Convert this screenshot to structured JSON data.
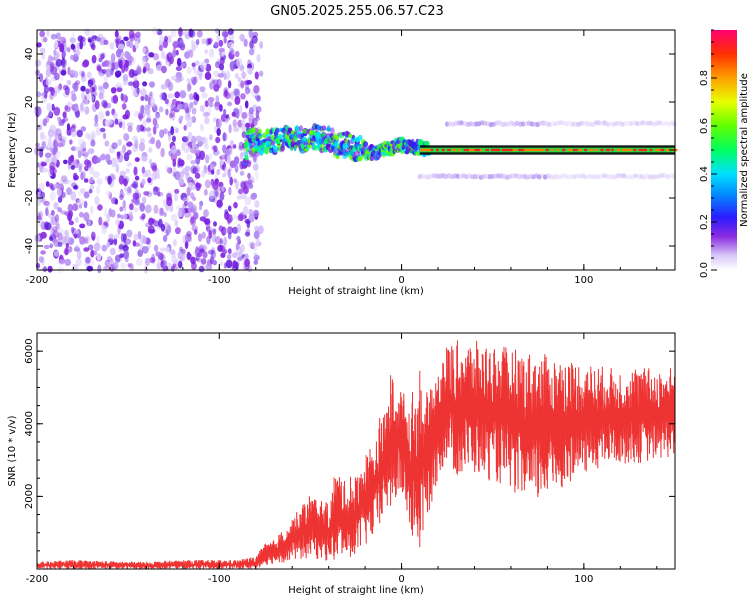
{
  "title": "GN05.2025.255.06.57.C23",
  "chart_data": [
    {
      "type": "heatmap",
      "xlabel": "Height of straight line (km)",
      "ylabel": "Frequency (Hz)",
      "xlim": [
        -200,
        150
      ],
      "ylim": [
        -50,
        50
      ],
      "x_ticks": [
        "-200",
        "-100",
        "0",
        "100"
      ],
      "y_ticks": [
        "-40",
        "-20",
        "0",
        "20",
        "40"
      ],
      "grid": false,
      "colorbar": {
        "label": "Normalized spectral amplitude",
        "range": [
          0.0,
          1.0
        ],
        "ticks": [
          "0.0",
          "0.2",
          "0.4",
          "0.6",
          "0.8"
        ]
      },
      "traces": [
        {
          "role": "main-tone",
          "x": [
            -85,
            -78,
            -70,
            -62,
            -55,
            -50,
            -45,
            -40,
            -35,
            -30,
            -25,
            -20,
            -15,
            -10,
            -5,
            0,
            5,
            10,
            15,
            20,
            40,
            60,
            80,
            100,
            120,
            150
          ],
          "y": [
            4,
            3,
            4,
            5,
            4,
            6,
            5,
            4,
            2,
            2,
            1,
            -1,
            -1,
            0,
            1,
            2,
            1,
            1,
            0,
            0,
            0,
            0,
            0,
            0,
            0,
            0
          ]
        },
        {
          "role": "upper-sideband",
          "x": [
            25,
            150
          ],
          "y": [
            11,
            11
          ]
        },
        {
          "role": "lower-sideband",
          "x": [
            10,
            150
          ],
          "y": [
            -11,
            -11
          ]
        }
      ],
      "noise_region_x": [
        -200,
        -80
      ]
    },
    {
      "type": "line",
      "xlabel": "Height of straight line (km)",
      "ylabel": "SNR (10 * v/v)",
      "xlim": [
        -200,
        150
      ],
      "ylim": [
        0,
        6500
      ],
      "x_ticks": [
        "-200",
        "-100",
        "0",
        "100"
      ],
      "y_ticks": [
        "2000",
        "4000",
        "6000"
      ],
      "grid": false,
      "series": [
        {
          "color": "#ee3333",
          "x": [
            -200,
            -180,
            -160,
            -140,
            -120,
            -100,
            -90,
            -80,
            -75,
            -70,
            -60,
            -50,
            -40,
            -35,
            -30,
            -25,
            -20,
            -15,
            -10,
            -5,
            0,
            5,
            10,
            15,
            20,
            25,
            30,
            40,
            50,
            60,
            70,
            80,
            90,
            100,
            110,
            120,
            130,
            140,
            150
          ],
          "min": [
            0,
            0,
            0,
            0,
            0,
            0,
            0,
            0,
            100,
            150,
            200,
            300,
            200,
            300,
            300,
            400,
            600,
            900,
            1500,
            1800,
            2000,
            1000,
            600,
            1500,
            2500,
            3000,
            2500,
            2600,
            2400,
            2200,
            1600,
            2000,
            2300,
            2600,
            2800,
            2900,
            2900,
            3000,
            3100
          ],
          "max": [
            200,
            250,
            220,
            200,
            250,
            250,
            250,
            350,
            700,
            800,
            1400,
            2100,
            1800,
            2800,
            2300,
            2600,
            3200,
            3600,
            4200,
            5300,
            5000,
            4500,
            5200,
            4800,
            5600,
            6200,
            6300,
            6300,
            6200,
            6100,
            6000,
            5900,
            5800,
            5700,
            5600,
            5500,
            5600,
            5500,
            5600
          ]
        }
      ]
    }
  ]
}
